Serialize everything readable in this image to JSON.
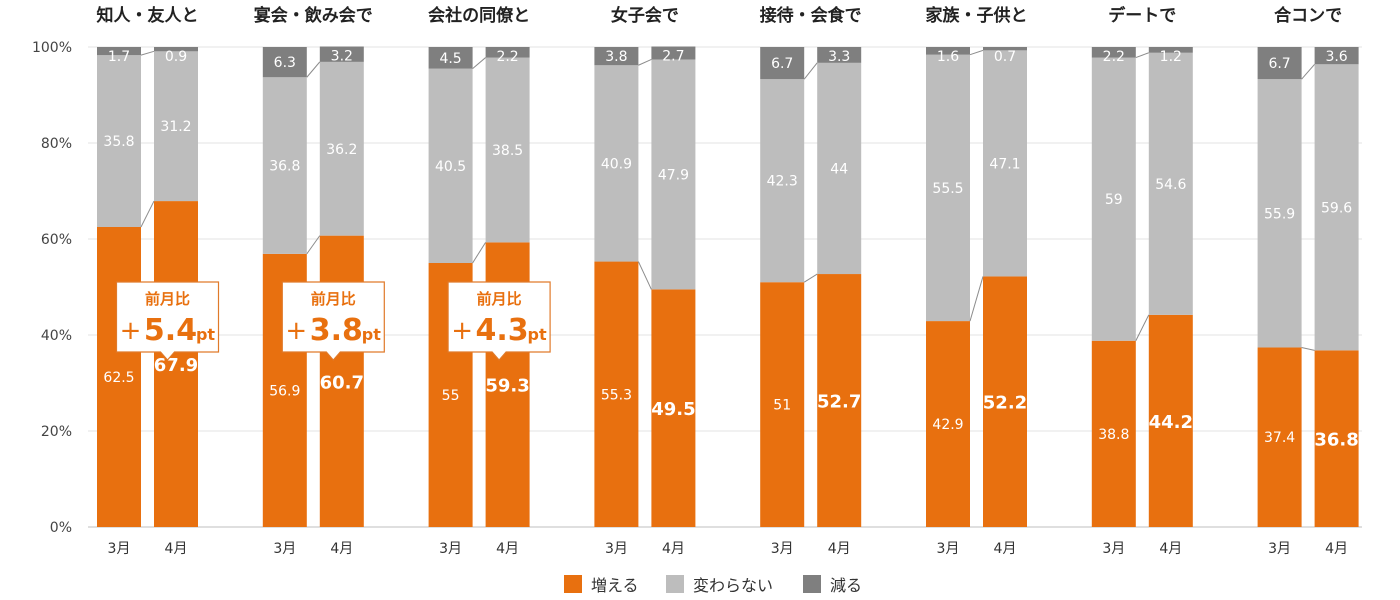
{
  "chart_data": {
    "type": "bar",
    "stacked": true,
    "percent": true,
    "ylim": [
      0,
      100
    ],
    "yticks": [
      0,
      20,
      40,
      60,
      80,
      100
    ],
    "ytick_labels": [
      "0%",
      "20%",
      "40%",
      "60%",
      "80%",
      "100%"
    ],
    "bar_labels": [
      "3月",
      "4月"
    ],
    "groups": [
      {
        "title": "知人・友人と",
        "months": [
          [
            62.5,
            35.8,
            1.7
          ],
          [
            67.9,
            31.2,
            0.9
          ]
        ]
      },
      {
        "title": "宴会・飲み会で",
        "months": [
          [
            56.9,
            36.8,
            6.3
          ],
          [
            60.7,
            36.2,
            3.2
          ]
        ]
      },
      {
        "title": "会社の同僚と",
        "months": [
          [
            55,
            40.5,
            4.5
          ],
          [
            59.3,
            38.5,
            2.2
          ]
        ]
      },
      {
        "title": "女子会で",
        "months": [
          [
            55.3,
            40.9,
            3.8
          ],
          [
            49.5,
            47.9,
            2.7
          ]
        ]
      },
      {
        "title": "接待・会食で",
        "months": [
          [
            51,
            42.3,
            6.7
          ],
          [
            52.7,
            44,
            3.3
          ]
        ]
      },
      {
        "title": "家族・子供と",
        "months": [
          [
            42.9,
            55.5,
            1.6
          ],
          [
            52.2,
            47.1,
            0.7
          ]
        ]
      },
      {
        "title": "デートで",
        "months": [
          [
            38.8,
            59,
            2.2
          ],
          [
            44.2,
            54.6,
            1.2
          ]
        ]
      },
      {
        "title": "合コンで",
        "months": [
          [
            37.4,
            55.9,
            6.7
          ],
          [
            36.8,
            59.6,
            3.6
          ]
        ]
      }
    ],
    "series": [
      {
        "name": "増える",
        "color": "#e8700f"
      },
      {
        "name": "変わらない",
        "color": "#bdbdbd"
      },
      {
        "name": "減る",
        "color": "#7f7f7f"
      }
    ],
    "callouts": [
      {
        "group": 0,
        "title": "前月比",
        "sign": "+",
        "value": "5.4",
        "unit": "pt"
      },
      {
        "group": 1,
        "title": "前月比",
        "sign": "+",
        "value": "3.8",
        "unit": "pt"
      },
      {
        "group": 2,
        "title": "前月比",
        "sign": "+",
        "value": "4.3",
        "unit": "pt"
      }
    ],
    "legend_position": "bottom"
  }
}
